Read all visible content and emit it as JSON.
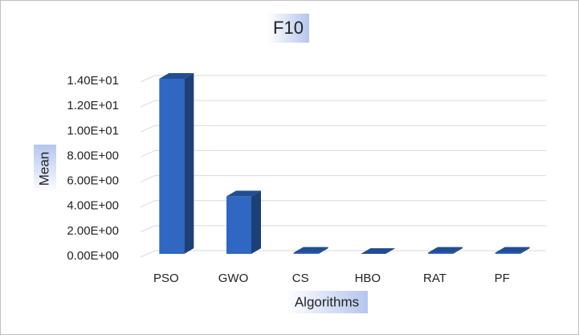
{
  "chart_data": {
    "type": "bar3d",
    "title": "F10",
    "x_label": "Algorithms",
    "y_label": "Mean",
    "categories": [
      "PSO",
      "GWO",
      "CS",
      "HBO",
      "RAT",
      "PF"
    ],
    "values": [
      14.0,
      4.6,
      0.1,
      0,
      0.1,
      0.1
    ],
    "color": "#2f67c2",
    "ylim": [
      0,
      14
    ],
    "yticks": [
      {
        "value": 0,
        "label": "0.00E+00"
      },
      {
        "value": 2,
        "label": "2.00E+00"
      },
      {
        "value": 4,
        "label": "4.00E+00"
      },
      {
        "value": 6,
        "label": "6.00E+00"
      },
      {
        "value": 8,
        "label": "8.00E+00"
      },
      {
        "value": 10,
        "label": "1.00E+01"
      },
      {
        "value": 12,
        "label": "1.20E+01"
      },
      {
        "value": 14,
        "label": "1.40E+01"
      }
    ],
    "grid": true
  }
}
